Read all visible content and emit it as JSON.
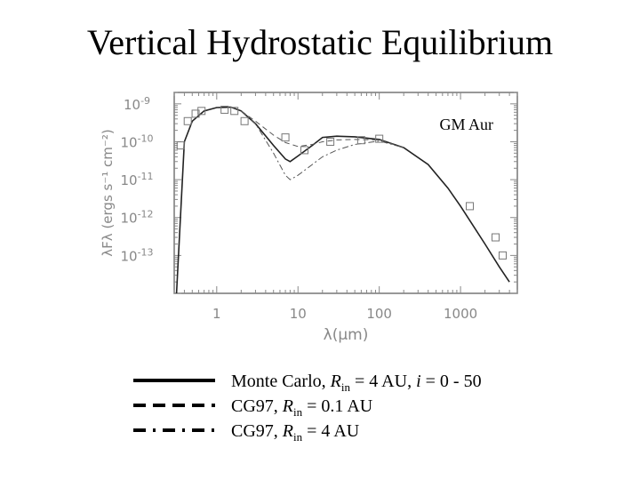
{
  "slide": {
    "title": "Vertical Hydrostatic Equilibrium"
  },
  "chart_data": {
    "type": "line",
    "log_x": true,
    "log_y": true,
    "xlabel": "λ(μm)",
    "ylabel": "λFλ (ergs s⁻¹ cm⁻²)",
    "xlim": [
      0.3,
      5000
    ],
    "ylim": [
      1e-14,
      2e-09
    ],
    "x_ticks": [
      1,
      10,
      100,
      1000
    ],
    "x_tick_labels": [
      "1",
      "10",
      "100",
      "1000"
    ],
    "y_ticks": [
      1e-13,
      1e-12,
      1e-11,
      1e-10,
      1e-09
    ],
    "y_tick_exponents": [
      "-13",
      "-12",
      "-11",
      "-10",
      "-9"
    ],
    "y_tick_base": "10",
    "grid": false,
    "annotation": "GM Aur",
    "observed_points": {
      "x": [
        0.36,
        0.44,
        0.55,
        0.65,
        1.25,
        1.65,
        2.2,
        7.0,
        12,
        25,
        60,
        100,
        1300,
        2700,
        3300
      ],
      "y": [
        8e-11,
        3.5e-10,
        5.5e-10,
        6.5e-10,
        7e-10,
        6.5e-10,
        3.5e-10,
        1.3e-10,
        6e-11,
        1e-10,
        1.1e-10,
        1.2e-10,
        2e-12,
        3e-13,
        1e-13
      ]
    },
    "series": [
      {
        "name": "Monte Carlo, Rin = 4 AU, i = 0 - 50",
        "style": "solid",
        "x": [
          0.32,
          0.4,
          0.5,
          0.7,
          1.0,
          1.5,
          2.0,
          3.0,
          5.0,
          7.0,
          8.0,
          10,
          15,
          20,
          30,
          50,
          100,
          200,
          400,
          700,
          1000,
          2000,
          3000,
          4000
        ],
        "y": [
          1e-14,
          1e-10,
          3.5e-10,
          6.5e-10,
          8e-10,
          8.2e-10,
          6.5e-10,
          3e-10,
          8e-11,
          3.5e-11,
          3e-11,
          4.2e-11,
          8e-11,
          1.3e-10,
          1.4e-10,
          1.35e-10,
          1.15e-10,
          7e-11,
          2.5e-11,
          6e-12,
          2e-12,
          2e-13,
          5e-14,
          2e-14
        ]
      },
      {
        "name": "CG97, Rin = 0.1 AU",
        "style": "dashed",
        "x": [
          2.0,
          3.0,
          5.0,
          7.0,
          10,
          15,
          20,
          30,
          50,
          100,
          200
        ],
        "y": [
          6.5e-10,
          3.5e-10,
          1.5e-10,
          9.5e-11,
          7.5e-11,
          8.5e-11,
          1e-10,
          1.12e-10,
          1.15e-10,
          1.12e-10,
          7e-11
        ]
      },
      {
        "name": "CG97, Rin = 4 AU",
        "style": "dash-dot",
        "x": [
          2.0,
          3.0,
          5.0,
          7.0,
          8.0,
          10,
          15,
          20,
          30,
          50,
          100,
          200
        ],
        "y": [
          6.5e-10,
          3e-10,
          5e-11,
          1.3e-11,
          1e-11,
          1.3e-11,
          2.5e-11,
          4e-11,
          6e-11,
          8.5e-11,
          1.05e-10,
          7e-11
        ]
      }
    ]
  },
  "legend": {
    "items": [
      {
        "label_pre": "Monte Carlo, ",
        "r": "R",
        "sub": "in",
        "label_mid": " = 4 AU, ",
        "i": "i",
        "label_post": " = 0 - 50"
      },
      {
        "label_pre": "CG97, ",
        "r": "R",
        "sub": "in",
        "label_mid": " = 0.1 AU",
        "i": "",
        "label_post": ""
      },
      {
        "label_pre": "CG97, ",
        "r": "R",
        "sub": "in",
        "label_mid": " = 4 AU",
        "i": "",
        "label_post": ""
      }
    ]
  }
}
